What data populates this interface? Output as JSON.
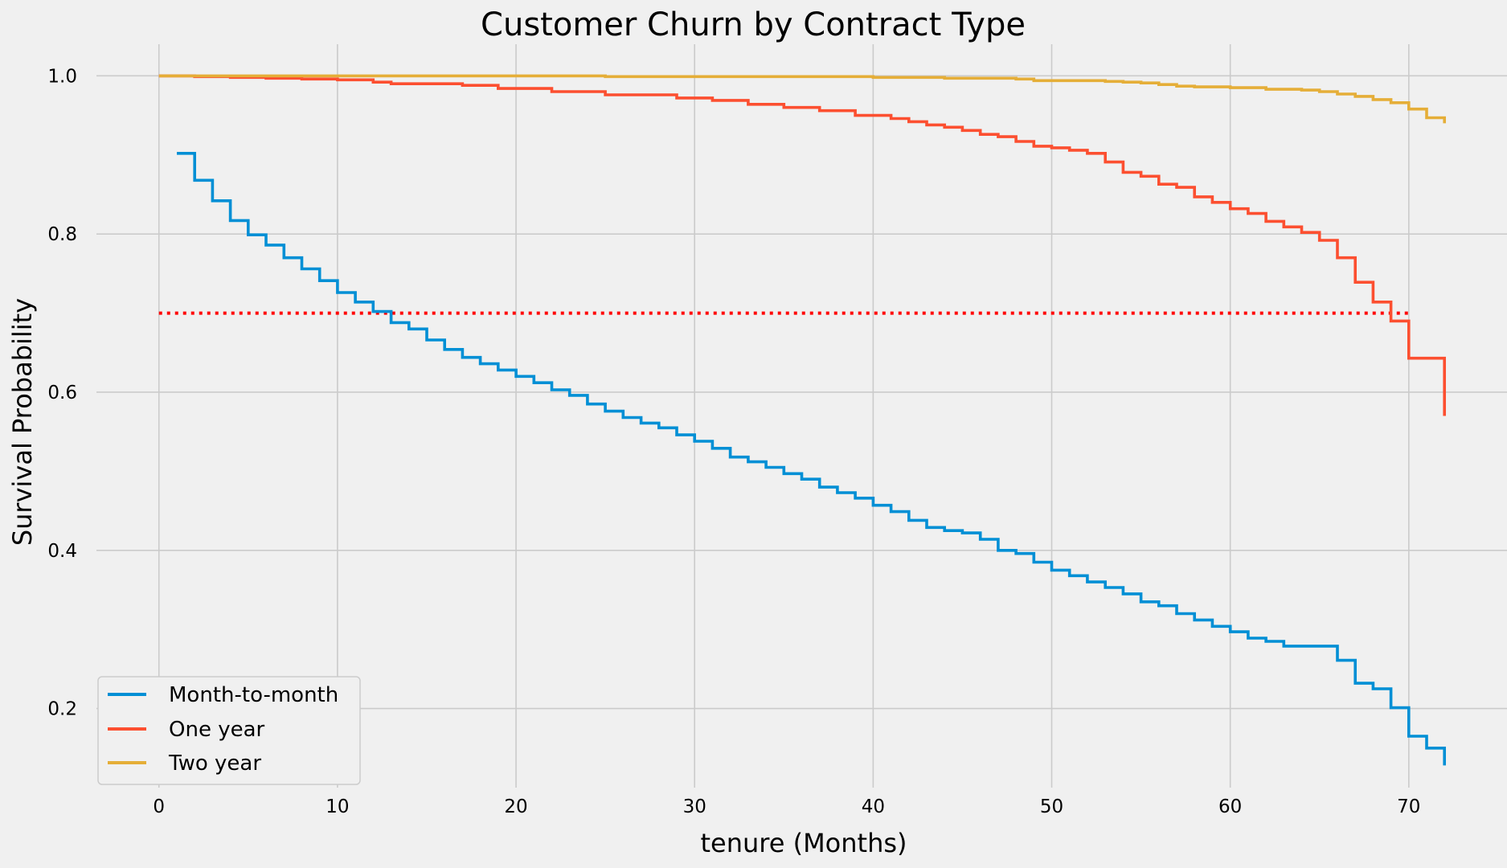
{
  "chart_data": {
    "type": "line",
    "step": true,
    "title": "Customer Churn by Contract Type",
    "xlabel": "tenure (Months)",
    "ylabel": "Survival Probability",
    "xlim": [
      -3.5,
      75.5
    ],
    "ylim": [
      0.1,
      1.04
    ],
    "xticks": [
      0,
      10,
      20,
      30,
      40,
      50,
      60,
      70
    ],
    "yticks": [
      0.2,
      0.4,
      0.6,
      0.8,
      1.0
    ],
    "ytick_labels": [
      "0.2",
      "0.4",
      "0.6",
      "0.8",
      "1.0"
    ],
    "grid": true,
    "legend_placement": "lower-left",
    "background": "#f0f0f0",
    "reference_line": {
      "y": 0.7,
      "x_range": [
        0,
        70
      ],
      "style": "dotted",
      "color": "#ff0000"
    },
    "series": [
      {
        "name": "Month-to-month",
        "color": "#008fd5",
        "x": [
          1,
          2,
          3,
          4,
          5,
          6,
          7,
          8,
          9,
          10,
          11,
          12,
          13,
          14,
          15,
          16,
          17,
          18,
          19,
          20,
          21,
          22,
          23,
          24,
          25,
          26,
          27,
          28,
          29,
          30,
          31,
          32,
          33,
          34,
          35,
          36,
          37,
          38,
          39,
          40,
          41,
          42,
          43,
          44,
          45,
          46,
          47,
          48,
          49,
          50,
          51,
          52,
          53,
          54,
          55,
          56,
          57,
          58,
          59,
          60,
          61,
          62,
          63,
          64,
          65,
          66,
          67,
          68,
          69,
          70,
          71,
          72
        ],
        "y": [
          0.902,
          0.868,
          0.842,
          0.817,
          0.799,
          0.786,
          0.77,
          0.756,
          0.741,
          0.726,
          0.714,
          0.702,
          0.688,
          0.68,
          0.666,
          0.654,
          0.644,
          0.636,
          0.628,
          0.62,
          0.612,
          0.603,
          0.596,
          0.585,
          0.576,
          0.568,
          0.561,
          0.555,
          0.546,
          0.538,
          0.529,
          0.518,
          0.512,
          0.505,
          0.497,
          0.49,
          0.48,
          0.473,
          0.466,
          0.457,
          0.449,
          0.438,
          0.429,
          0.425,
          0.422,
          0.414,
          0.4,
          0.396,
          0.385,
          0.375,
          0.368,
          0.36,
          0.353,
          0.345,
          0.335,
          0.33,
          0.32,
          0.312,
          0.304,
          0.297,
          0.289,
          0.285,
          0.279,
          0.279,
          0.279,
          0.261,
          0.232,
          0.225,
          0.201,
          0.165,
          0.15,
          0.128
        ]
      },
      {
        "name": "One year",
        "color": "#fc4f30",
        "x": [
          0,
          2,
          4,
          6,
          8,
          10,
          12,
          13,
          17,
          19,
          22,
          25,
          29,
          31,
          33,
          35,
          37,
          39,
          41,
          42,
          43,
          44,
          45,
          46,
          47,
          48,
          49,
          50,
          51,
          52,
          53,
          54,
          55,
          56,
          57,
          58,
          59,
          60,
          61,
          62,
          63,
          64,
          65,
          66,
          67,
          68,
          69,
          70,
          71,
          72
        ],
        "y": [
          1.0,
          0.999,
          0.998,
          0.997,
          0.996,
          0.995,
          0.992,
          0.99,
          0.988,
          0.984,
          0.98,
          0.976,
          0.972,
          0.969,
          0.964,
          0.96,
          0.956,
          0.95,
          0.946,
          0.942,
          0.938,
          0.935,
          0.931,
          0.926,
          0.923,
          0.917,
          0.911,
          0.909,
          0.906,
          0.902,
          0.891,
          0.878,
          0.873,
          0.863,
          0.859,
          0.847,
          0.84,
          0.832,
          0.826,
          0.816,
          0.809,
          0.802,
          0.792,
          0.77,
          0.739,
          0.714,
          0.69,
          0.643,
          0.643,
          0.57
        ]
      },
      {
        "name": "Two year",
        "color": "#e5ae38",
        "x": [
          0,
          10,
          25,
          40,
          44,
          48,
          49,
          53,
          54,
          55,
          56,
          57,
          58,
          60,
          62,
          64,
          65,
          66,
          67,
          68,
          69,
          70,
          71,
          72
        ],
        "y": [
          1.0,
          1.0,
          0.999,
          0.998,
          0.997,
          0.996,
          0.994,
          0.993,
          0.992,
          0.991,
          0.989,
          0.987,
          0.986,
          0.985,
          0.983,
          0.982,
          0.98,
          0.977,
          0.974,
          0.97,
          0.966,
          0.958,
          0.947,
          0.94
        ]
      }
    ]
  }
}
